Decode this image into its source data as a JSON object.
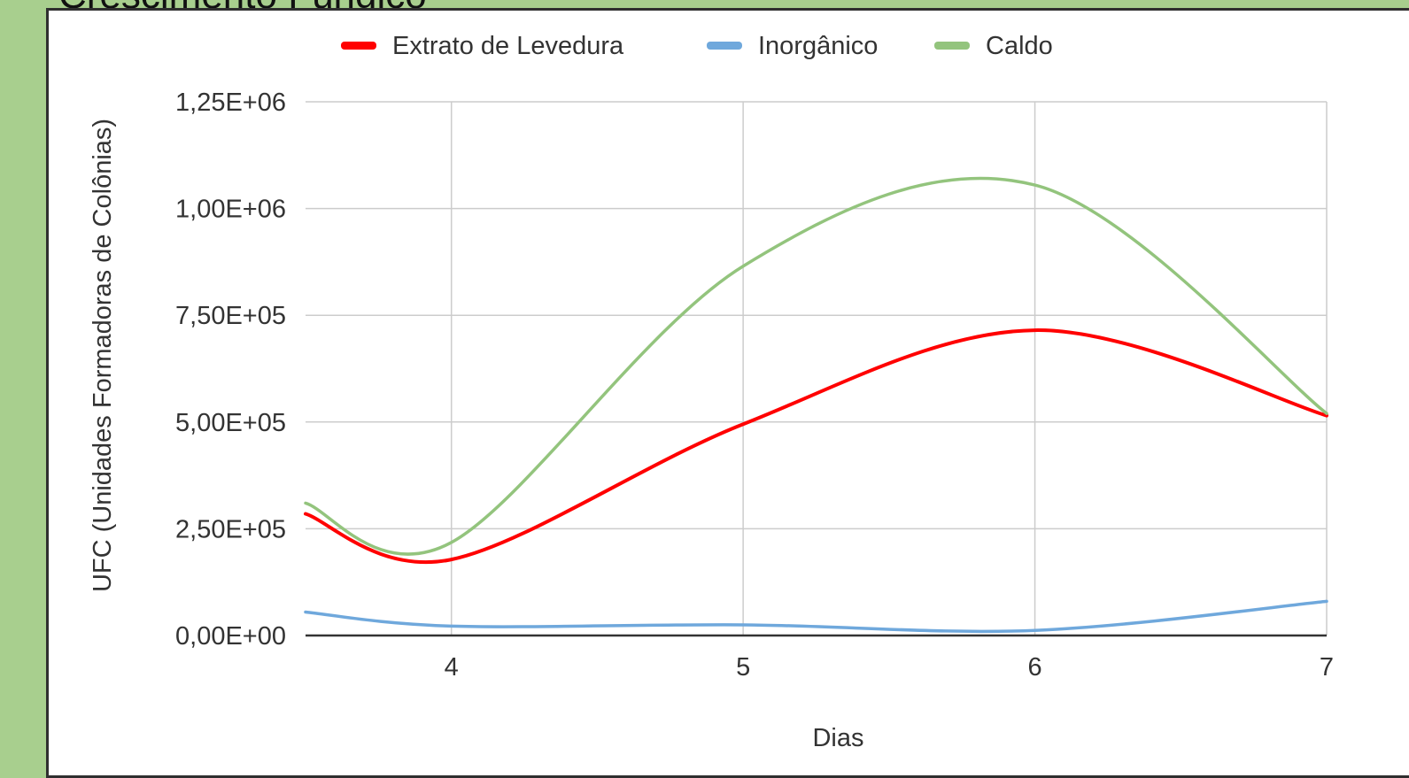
{
  "page": {
    "title": "Crescimento Fúngico"
  },
  "colors": {
    "background": "#a8cf8e",
    "grid": "#cccccc",
    "axis": "#333333"
  },
  "chart_data": {
    "type": "line",
    "title": "Crescimento Fúngico",
    "xlabel": "Dias",
    "ylabel": "UFC (Unidades Formadoras de Colônias)",
    "xlim": [
      3.5,
      7
    ],
    "ylim": [
      0,
      1250000
    ],
    "xticks": [
      4,
      5,
      6,
      7
    ],
    "xtick_labels": [
      "4",
      "5",
      "6",
      "7"
    ],
    "yticks": [
      0,
      250000,
      500000,
      750000,
      1000000,
      1250000
    ],
    "ytick_labels": [
      "0,00E+00",
      "2,50E+05",
      "5,00E+05",
      "7,50E+05",
      "1,00E+06",
      "1,25E+06"
    ],
    "grid": true,
    "smooth": true,
    "legend_position": "top",
    "x": [
      3.5,
      4,
      5,
      6,
      7
    ],
    "series": [
      {
        "name": "Extrato de Levedura",
        "color": "#ff0000",
        "values": [
          285000,
          178000,
          495000,
          715000,
          515000
        ]
      },
      {
        "name": "Inorgânico",
        "color": "#6fa8dc",
        "values": [
          55000,
          22000,
          25000,
          12000,
          80000
        ]
      },
      {
        "name": "Caldo",
        "color": "#93c47d",
        "values": [
          310000,
          218000,
          865000,
          1055000,
          520000
        ]
      }
    ]
  }
}
